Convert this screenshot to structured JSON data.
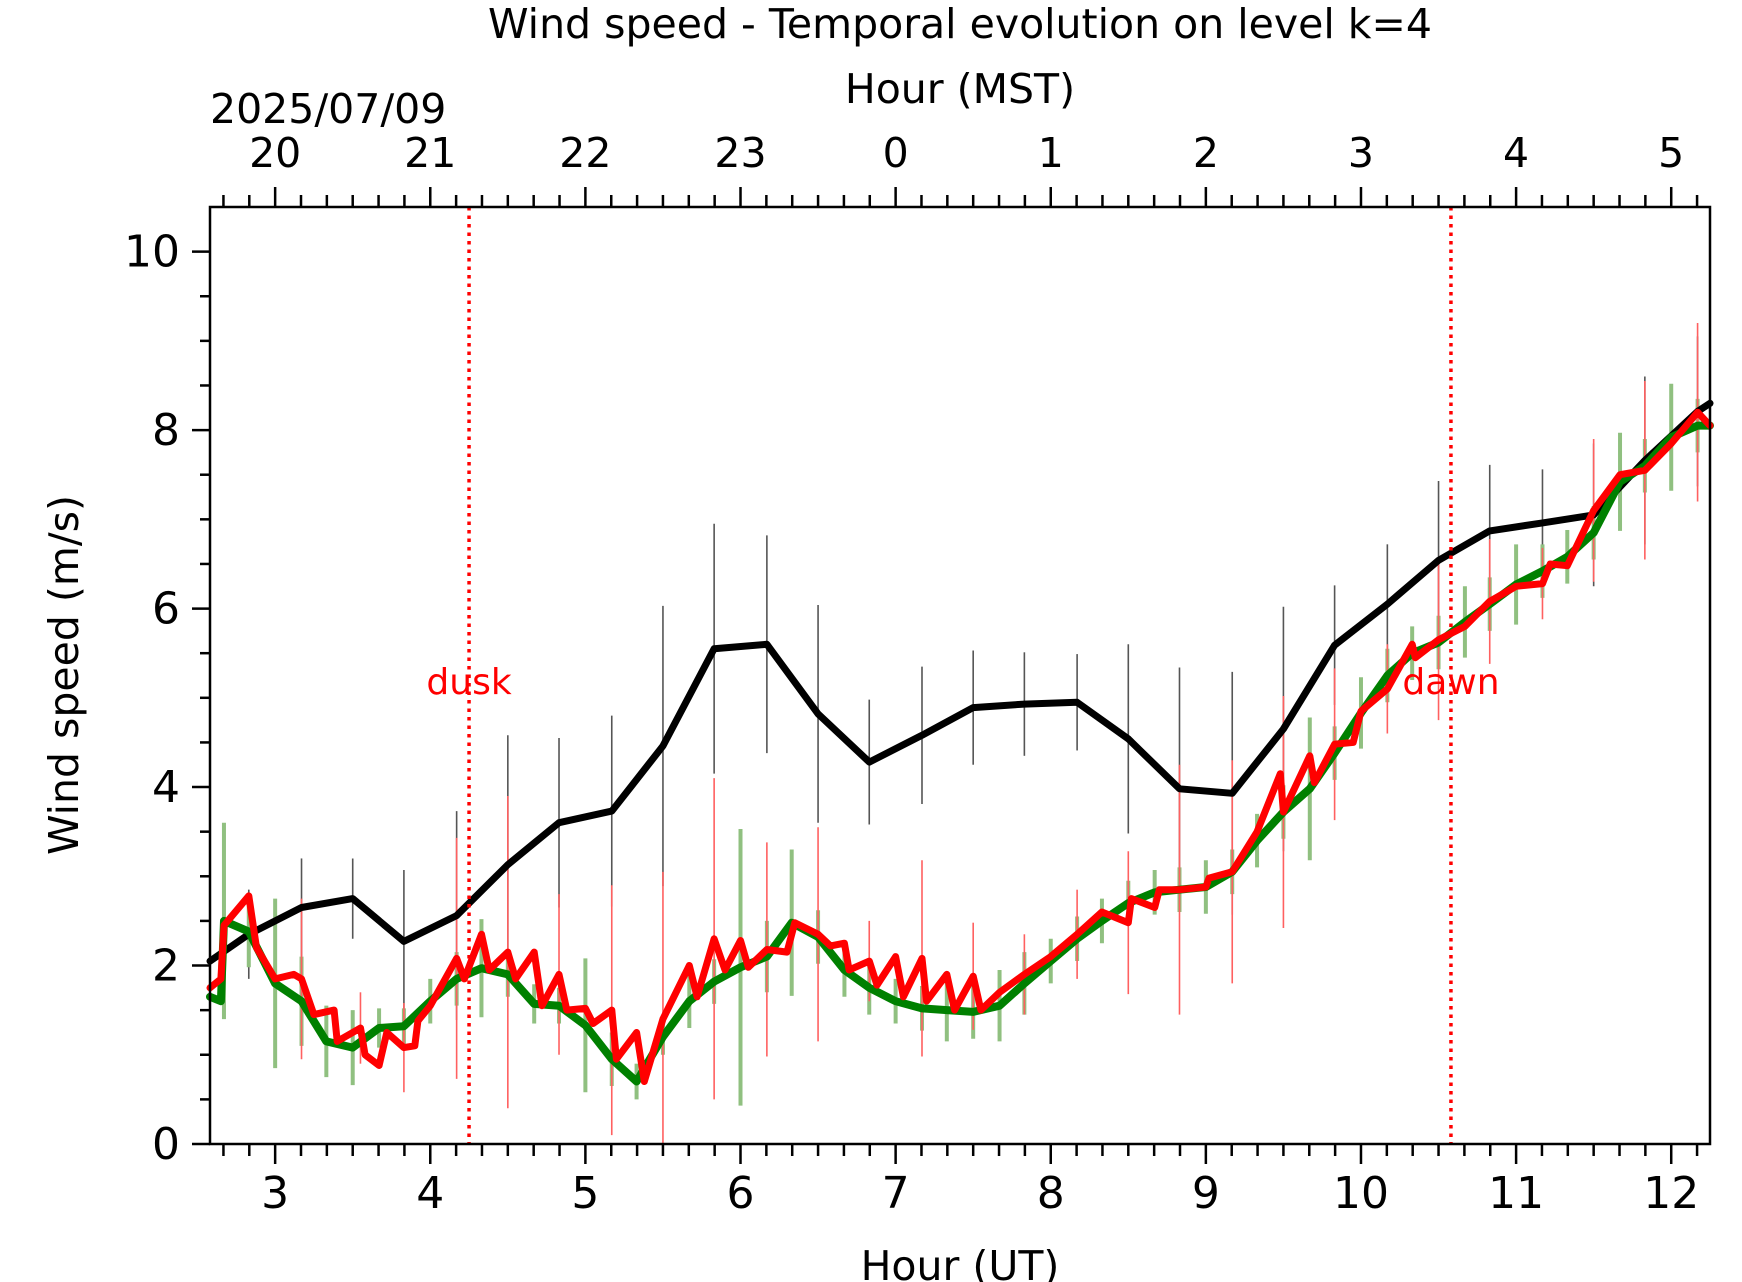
{
  "chart_data": {
    "type": "line",
    "title": "Wind speed - Temporal evolution on level k=4",
    "xlabel": "Hour (UT)",
    "x2label": "Hour (MST)",
    "ylabel": "Wind speed (m/s)",
    "date_label": "2025/07/09",
    "xlim": [
      2.58,
      12.25
    ],
    "ylim": [
      0,
      10.5
    ],
    "x_ticks": [
      3,
      4,
      5,
      6,
      7,
      8,
      9,
      10,
      11,
      12
    ],
    "y_ticks": [
      0,
      2,
      4,
      6,
      8,
      10
    ],
    "x2_ticks": [
      {
        "x": 3,
        "label": "20"
      },
      {
        "x": 4,
        "label": "21"
      },
      {
        "x": 5,
        "label": "22"
      },
      {
        "x": 6,
        "label": "23"
      },
      {
        "x": 7,
        "label": "0"
      },
      {
        "x": 8,
        "label": "1"
      },
      {
        "x": 9,
        "label": "2"
      },
      {
        "x": 10,
        "label": "3"
      },
      {
        "x": 11,
        "label": "4"
      },
      {
        "x": 12,
        "label": "5"
      }
    ],
    "grid": false,
    "annotations": [
      {
        "text": "dusk",
        "x": 4.25,
        "y": 5.2,
        "color": "#ff0000"
      },
      {
        "text": "dawn",
        "x": 10.58,
        "y": 5.2,
        "color": "#ff0000"
      }
    ],
    "vlines": [
      {
        "x": 4.25,
        "color": "#ff0000",
        "style": "dotted"
      },
      {
        "x": 10.58,
        "color": "#ff0000",
        "style": "dotted"
      }
    ],
    "series": [
      {
        "color": "#000000",
        "errorbar_color": "#555555",
        "points": [
          [
            2.58,
            2.05,
            1.3
          ],
          [
            2.83,
            2.35,
            0.5
          ],
          [
            3.17,
            2.65,
            0.55
          ],
          [
            3.5,
            2.75,
            0.45
          ],
          [
            3.83,
            2.27,
            0.8
          ],
          [
            4.17,
            2.56,
            1.17
          ],
          [
            4.5,
            3.13,
            1.45
          ],
          [
            4.83,
            3.6,
            0.95
          ],
          [
            5.17,
            3.73,
            1.07
          ],
          [
            5.5,
            4.46,
            1.57
          ],
          [
            5.83,
            5.55,
            1.4
          ],
          [
            6.17,
            5.6,
            1.22
          ],
          [
            6.5,
            4.82,
            1.22
          ],
          [
            6.83,
            4.28,
            0.7
          ],
          [
            7.17,
            4.58,
            0.77
          ],
          [
            7.5,
            4.89,
            0.64
          ],
          [
            7.83,
            4.93,
            0.58
          ],
          [
            8.17,
            4.95,
            0.54
          ],
          [
            8.5,
            4.54,
            1.06
          ],
          [
            8.83,
            3.98,
            1.36
          ],
          [
            9.17,
            3.93,
            1.36
          ],
          [
            9.5,
            4.65,
            1.37
          ],
          [
            9.83,
            5.59,
            0.67
          ],
          [
            10.17,
            6.05,
            0.67
          ],
          [
            10.5,
            6.54,
            0.89
          ],
          [
            10.83,
            6.87,
            0.74
          ],
          [
            11.17,
            6.96,
            0.6
          ],
          [
            11.5,
            7.05,
            0.8
          ],
          [
            11.83,
            7.66,
            0.94
          ],
          [
            12.17,
            8.21,
            0.84
          ],
          [
            12.25,
            8.3,
            0
          ]
        ]
      },
      {
        "color": "#008000",
        "errorbar_color": "#90c080",
        "points": [
          [
            2.58,
            1.65,
            0
          ],
          [
            2.65,
            1.6,
            0
          ],
          [
            2.67,
            2.5,
            1.1
          ],
          [
            2.83,
            2.38,
            0.4
          ],
          [
            3.0,
            1.8,
            0.95
          ],
          [
            3.17,
            1.6,
            0.5
          ],
          [
            3.33,
            1.15,
            0.4
          ],
          [
            3.5,
            1.08,
            0.42
          ],
          [
            3.67,
            1.3,
            0.22
          ],
          [
            3.83,
            1.32,
            0.2
          ],
          [
            4.0,
            1.6,
            0.25
          ],
          [
            4.17,
            1.85,
            0.3
          ],
          [
            4.33,
            1.97,
            0.55
          ],
          [
            4.5,
            1.9,
            0.25
          ],
          [
            4.67,
            1.57,
            0.22
          ],
          [
            4.83,
            1.55,
            0.2
          ],
          [
            5.0,
            1.33,
            0.75
          ],
          [
            5.17,
            0.95,
            0.3
          ],
          [
            5.33,
            0.7,
            0.2
          ],
          [
            5.5,
            1.2,
            0.2
          ],
          [
            5.67,
            1.6,
            0.3
          ],
          [
            5.83,
            1.82,
            0.25
          ],
          [
            6.0,
            1.98,
            1.55
          ],
          [
            6.17,
            2.1,
            0.4
          ],
          [
            6.33,
            2.48,
            0.82
          ],
          [
            6.5,
            2.32,
            0.3
          ],
          [
            6.67,
            1.95,
            0.3
          ],
          [
            6.83,
            1.75,
            0.3
          ],
          [
            7.0,
            1.6,
            0.25
          ],
          [
            7.17,
            1.52,
            0.25
          ],
          [
            7.33,
            1.5,
            0.35
          ],
          [
            7.5,
            1.48,
            0.3
          ],
          [
            7.67,
            1.55,
            0.4
          ],
          [
            7.83,
            1.8,
            0.35
          ],
          [
            8.0,
            2.05,
            0.25
          ],
          [
            8.17,
            2.3,
            0.25
          ],
          [
            8.33,
            2.5,
            0.25
          ],
          [
            8.5,
            2.7,
            0.25
          ],
          [
            8.67,
            2.82,
            0.25
          ],
          [
            8.83,
            2.85,
            0.25
          ],
          [
            9.0,
            2.88,
            0.3
          ],
          [
            9.17,
            3.05,
            0.25
          ],
          [
            9.33,
            3.4,
            0.3
          ],
          [
            9.5,
            3.72,
            0.3
          ],
          [
            9.67,
            3.98,
            0.8
          ],
          [
            9.83,
            4.38,
            0.3
          ],
          [
            10.0,
            4.83,
            0.4
          ],
          [
            10.17,
            5.25,
            0.3
          ],
          [
            10.33,
            5.5,
            0.3
          ],
          [
            10.5,
            5.62,
            0.3
          ],
          [
            10.67,
            5.85,
            0.4
          ],
          [
            10.83,
            6.05,
            0.3
          ],
          [
            11.0,
            6.27,
            0.45
          ],
          [
            11.17,
            6.42,
            0.3
          ],
          [
            11.33,
            6.58,
            0.3
          ],
          [
            11.5,
            6.85,
            0.3
          ],
          [
            11.67,
            7.42,
            0.55
          ],
          [
            11.83,
            7.6,
            0.3
          ],
          [
            12.0,
            7.92,
            0.6
          ],
          [
            12.17,
            8.05,
            0.3
          ],
          [
            12.25,
            8.05,
            0
          ]
        ]
      },
      {
        "color": "#ff0000",
        "errorbar_color": "#ff6060",
        "points": [
          [
            2.58,
            1.75,
            0
          ],
          [
            2.65,
            1.85,
            0
          ],
          [
            2.67,
            2.45,
            0
          ],
          [
            2.83,
            2.78,
            0
          ],
          [
            2.88,
            2.2,
            0
          ],
          [
            3.0,
            1.85,
            0
          ],
          [
            3.12,
            1.9,
            0
          ],
          [
            3.17,
            1.85,
            0.9
          ],
          [
            3.25,
            1.45,
            0
          ],
          [
            3.38,
            1.5,
            0
          ],
          [
            3.4,
            1.15,
            0
          ],
          [
            3.55,
            1.3,
            0.4
          ],
          [
            3.58,
            1.0,
            0
          ],
          [
            3.67,
            0.88,
            0
          ],
          [
            3.72,
            1.25,
            0
          ],
          [
            3.83,
            1.08,
            0.5
          ],
          [
            3.9,
            1.1,
            0
          ],
          [
            3.92,
            1.38,
            0
          ],
          [
            4.0,
            1.55,
            0
          ],
          [
            4.17,
            2.08,
            1.35
          ],
          [
            4.22,
            1.85,
            0
          ],
          [
            4.33,
            2.35,
            0
          ],
          [
            4.38,
            1.95,
            0
          ],
          [
            4.5,
            2.15,
            1.75
          ],
          [
            4.55,
            1.85,
            0
          ],
          [
            4.67,
            2.15,
            0
          ],
          [
            4.72,
            1.55,
            0
          ],
          [
            4.83,
            1.9,
            0.9
          ],
          [
            4.88,
            1.5,
            0
          ],
          [
            5.0,
            1.52,
            0
          ],
          [
            5.05,
            1.35,
            0
          ],
          [
            5.17,
            1.5,
            1.4
          ],
          [
            5.2,
            0.95,
            0
          ],
          [
            5.33,
            1.25,
            0
          ],
          [
            5.38,
            0.7,
            0
          ],
          [
            5.5,
            1.4,
            1.65
          ],
          [
            5.67,
            2.0,
            0
          ],
          [
            5.72,
            1.65,
            0
          ],
          [
            5.83,
            2.3,
            1.8
          ],
          [
            5.9,
            1.95,
            0
          ],
          [
            6.0,
            2.28,
            0
          ],
          [
            6.05,
            1.98,
            0
          ],
          [
            6.17,
            2.18,
            1.2
          ],
          [
            6.3,
            2.15,
            0
          ],
          [
            6.35,
            2.48,
            0
          ],
          [
            6.5,
            2.35,
            1.2
          ],
          [
            6.58,
            2.22,
            0
          ],
          [
            6.67,
            2.25,
            0
          ],
          [
            6.7,
            1.95,
            0
          ],
          [
            6.83,
            2.05,
            0.45
          ],
          [
            6.88,
            1.78,
            0
          ],
          [
            7.0,
            2.1,
            0
          ],
          [
            7.05,
            1.65,
            0
          ],
          [
            7.17,
            2.08,
            1.1
          ],
          [
            7.2,
            1.6,
            0
          ],
          [
            7.33,
            1.9,
            0
          ],
          [
            7.38,
            1.5,
            0
          ],
          [
            7.5,
            1.88,
            0.6
          ],
          [
            7.55,
            1.5,
            0
          ],
          [
            7.67,
            1.7,
            0
          ],
          [
            7.83,
            1.9,
            0.45
          ],
          [
            8.0,
            2.1,
            0
          ],
          [
            8.17,
            2.35,
            0.5
          ],
          [
            8.33,
            2.6,
            0
          ],
          [
            8.5,
            2.48,
            0.8
          ],
          [
            8.52,
            2.75,
            0
          ],
          [
            8.67,
            2.65,
            0
          ],
          [
            8.7,
            2.85,
            0
          ],
          [
            8.83,
            2.85,
            1.4
          ],
          [
            9.0,
            2.88,
            0
          ],
          [
            9.02,
            2.98,
            0
          ],
          [
            9.17,
            3.05,
            1.25
          ],
          [
            9.33,
            3.5,
            0
          ],
          [
            9.48,
            4.15,
            0
          ],
          [
            9.5,
            3.72,
            1.3
          ],
          [
            9.67,
            4.35,
            0
          ],
          [
            9.7,
            4.05,
            0
          ],
          [
            9.83,
            4.48,
            0.85
          ],
          [
            9.95,
            4.5,
            0
          ],
          [
            10.0,
            4.85,
            0
          ],
          [
            10.17,
            5.1,
            0.5
          ],
          [
            10.33,
            5.6,
            0
          ],
          [
            10.35,
            5.45,
            0
          ],
          [
            10.5,
            5.65,
            0.9
          ],
          [
            10.67,
            5.8,
            0
          ],
          [
            10.83,
            6.08,
            0.7
          ],
          [
            11.0,
            6.25,
            0
          ],
          [
            11.17,
            6.28,
            0.4
          ],
          [
            11.22,
            6.5,
            0
          ],
          [
            11.33,
            6.48,
            0
          ],
          [
            11.5,
            7.1,
            0.8
          ],
          [
            11.67,
            7.5,
            0
          ],
          [
            11.83,
            7.55,
            1.0
          ],
          [
            12.0,
            7.85,
            0
          ],
          [
            12.17,
            8.2,
            1.0
          ],
          [
            12.25,
            8.05,
            0
          ]
        ]
      }
    ]
  }
}
